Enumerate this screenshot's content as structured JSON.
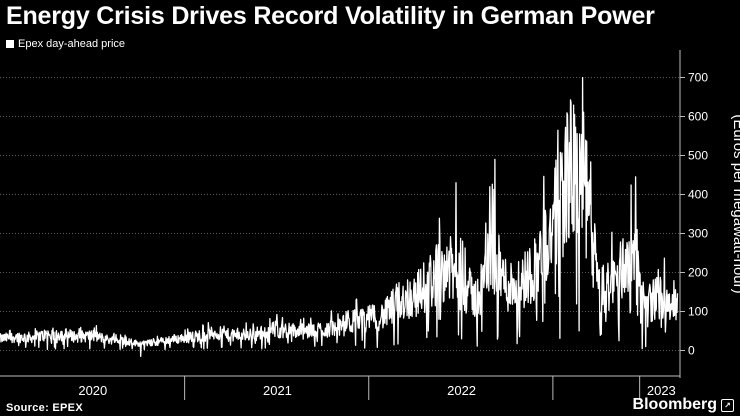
{
  "header": {
    "title": "Energy Crisis Drives Record Volatility in German Power",
    "legend_label": "Epex day-ahead price"
  },
  "footer": {
    "source": "Source: EPEX",
    "brand": "Bloomberg"
  },
  "colors": {
    "background": "#000000",
    "line": "#ffffff",
    "grid": "#5a5a5a"
  },
  "chart_data": {
    "type": "line",
    "title": "Energy Crisis Drives Record Volatility in German Power",
    "xlabel": "",
    "ylabel": "(Euros per megawatt-hour)",
    "ylim": [
      -50,
      750
    ],
    "yticks": [
      0,
      100,
      200,
      300,
      400,
      500,
      600,
      700
    ],
    "xlim": [
      "2019-07-01",
      "2023-03-10"
    ],
    "year_labels": [
      {
        "label": "2020",
        "center": "2020-01-01"
      },
      {
        "label": "2021",
        "center": "2021-01-01"
      },
      {
        "label": "2022",
        "center": "2022-01-01"
      },
      {
        "label": "2023",
        "center": "2023-02-01"
      }
    ],
    "year_boundaries": [
      "2020-07-01",
      "2021-07-01",
      "2022-07-01",
      "2022-12-20"
    ],
    "series": [
      {
        "name": "Epex day-ahead price",
        "points": [
          [
            "2019-07-01",
            30
          ],
          [
            "2019-08-01",
            35
          ],
          [
            "2019-09-01",
            33
          ],
          [
            "2019-10-01",
            40
          ],
          [
            "2019-11-01",
            42
          ],
          [
            "2019-12-01",
            35
          ],
          [
            "2020-01-01",
            38
          ],
          [
            "2020-02-01",
            28
          ],
          [
            "2020-03-01",
            25
          ],
          [
            "2020-04-01",
            18
          ],
          [
            "2020-05-01",
            20
          ],
          [
            "2020-06-01",
            28
          ],
          [
            "2020-07-01",
            32
          ],
          [
            "2020-08-01",
            38
          ],
          [
            "2020-09-01",
            45
          ],
          [
            "2020-10-01",
            38
          ],
          [
            "2020-11-01",
            40
          ],
          [
            "2020-12-01",
            45
          ],
          [
            "2021-01-01",
            55
          ],
          [
            "2021-02-01",
            50
          ],
          [
            "2021-03-01",
            48
          ],
          [
            "2021-04-01",
            55
          ],
          [
            "2021-05-01",
            58
          ],
          [
            "2021-06-01",
            75
          ],
          [
            "2021-07-01",
            82
          ],
          [
            "2021-08-01",
            90
          ],
          [
            "2021-09-01",
            130
          ],
          [
            "2021-10-01",
            140
          ],
          [
            "2021-11-01",
            180
          ],
          [
            "2021-12-01",
            220
          ],
          [
            "2022-01-01",
            170
          ],
          [
            "2022-02-01",
            130
          ],
          [
            "2022-03-01",
            250
          ],
          [
            "2022-04-01",
            165
          ],
          [
            "2022-05-01",
            175
          ],
          [
            "2022-06-01",
            220
          ],
          [
            "2022-07-01",
            315
          ],
          [
            "2022-08-01",
            465
          ],
          [
            "2022-09-01",
            430
          ],
          [
            "2022-10-01",
            150
          ],
          [
            "2022-11-01",
            175
          ],
          [
            "2022-12-01",
            250
          ],
          [
            "2023-01-01",
            120
          ],
          [
            "2023-02-01",
            140
          ],
          [
            "2023-03-05",
            110
          ]
        ],
        "peaks": [
          [
            "2021-12-21",
            430
          ],
          [
            "2022-03-08",
            490
          ],
          [
            "2022-08-29",
            700
          ],
          [
            "2022-12-12",
            445
          ]
        ],
        "troughs": [
          [
            "2020-04-05",
            -15
          ],
          [
            "2021-12-26",
            40
          ],
          [
            "2022-01-01",
            30
          ],
          [
            "2022-12-25",
            5
          ],
          [
            "2023-01-01",
            10
          ]
        ]
      }
    ]
  }
}
